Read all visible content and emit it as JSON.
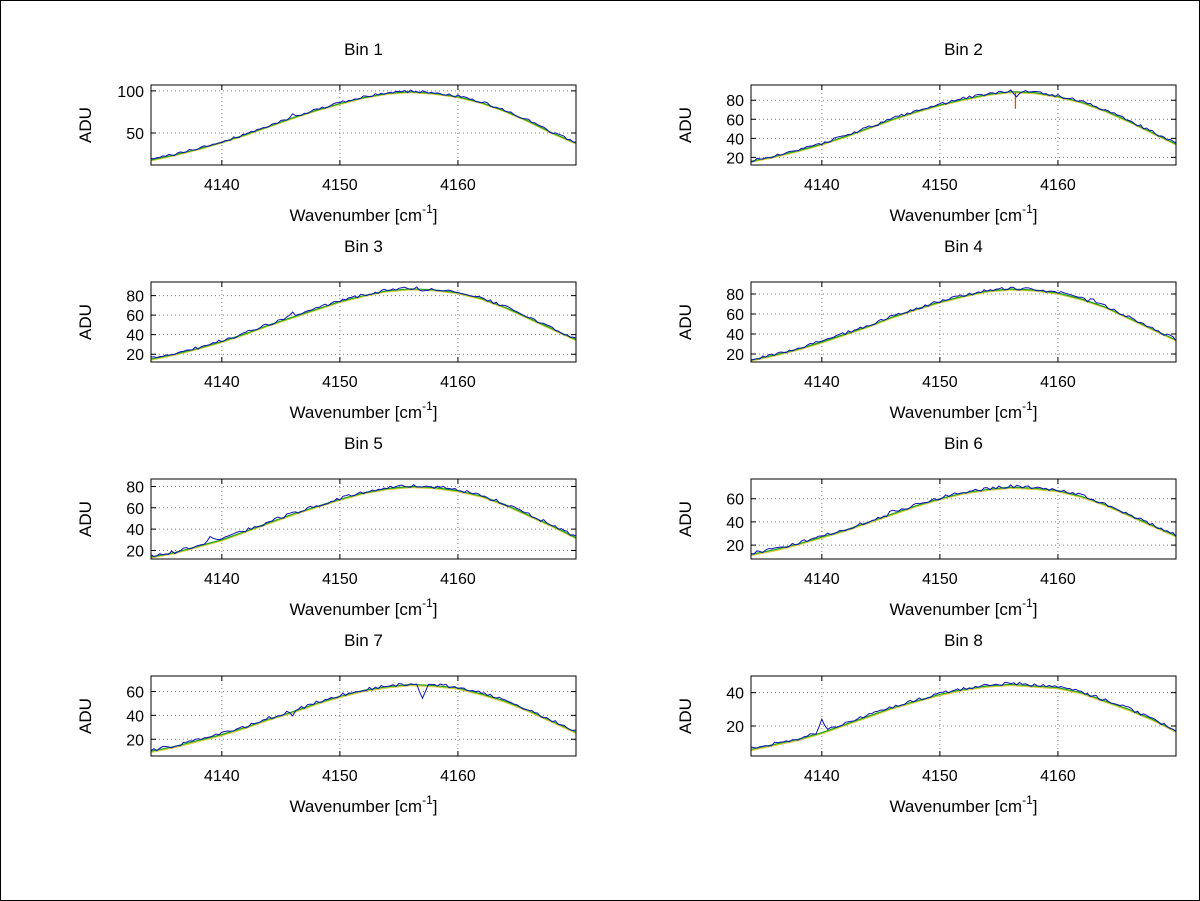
{
  "figure": {
    "background": "#ffffff",
    "border_color": "#000000",
    "grid_color": "#808080",
    "axis_color": "#000000"
  },
  "chart_data": [
    {
      "type": "line",
      "title": "Bin 1",
      "xlabel": {
        "base": "Wavenumber [cm",
        "sup": "-1",
        "end": "]"
      },
      "ylabel": "ADU",
      "xlim": [
        4134,
        4170
      ],
      "ylim": [
        12,
        107
      ],
      "xticks": [
        4140,
        4150,
        4160
      ],
      "yticks": [
        50,
        100
      ],
      "grid": true,
      "x_start": 4134,
      "x_step": 2,
      "values": [
        18,
        24,
        31,
        39,
        48,
        58,
        68,
        77,
        85,
        92,
        97,
        99,
        97,
        93,
        86,
        76,
        64,
        50,
        38
      ],
      "series": [
        {
          "name": "fit-yellow",
          "color": "#d4cf3a",
          "offset": -1.0,
          "noise": 0,
          "width": 1.2
        },
        {
          "name": "fit-green",
          "color": "#1fa01f",
          "offset": 0,
          "noise": 0,
          "width": 1.2
        },
        {
          "name": "measured",
          "color": "#1212b8",
          "offset": 0.7,
          "noise": 1.6,
          "width": 1.0
        }
      ],
      "spikes": [
        {
          "x": 4146,
          "dy": 5
        }
      ]
    },
    {
      "type": "line",
      "title": "Bin 2",
      "xlabel": {
        "base": "Wavenumber [cm",
        "sup": "-1",
        "end": "]"
      },
      "ylabel": "ADU",
      "xlim": [
        4134,
        4170
      ],
      "ylim": [
        12,
        96
      ],
      "xticks": [
        4140,
        4150,
        4160
      ],
      "yticks": [
        20,
        40,
        60,
        80
      ],
      "grid": true,
      "x_start": 4134,
      "x_step": 2,
      "values": [
        16,
        21,
        27,
        34,
        42,
        51,
        60,
        68,
        75,
        81,
        86,
        89,
        88,
        84,
        78,
        69,
        58,
        46,
        34
      ],
      "series": [
        {
          "name": "fit-yellow",
          "color": "#d4cf3a",
          "offset": -1.0,
          "noise": 0,
          "width": 1.2
        },
        {
          "name": "fit-green",
          "color": "#1fa01f",
          "offset": 0,
          "noise": 0,
          "width": 1.2
        },
        {
          "name": "measured",
          "color": "#1212b8",
          "offset": 0.7,
          "noise": 1.6,
          "width": 1.0
        }
      ],
      "spikes": [
        {
          "x": 4156.4,
          "dy": -5
        }
      ],
      "anomaly": {
        "x": 4156.4,
        "y1": 88,
        "y2": 71,
        "color": "#cc5500"
      }
    },
    {
      "type": "line",
      "title": "Bin 3",
      "xlabel": {
        "base": "Wavenumber [cm",
        "sup": "-1",
        "end": "]"
      },
      "ylabel": "ADU",
      "xlim": [
        4134,
        4170
      ],
      "ylim": [
        12,
        94
      ],
      "xticks": [
        4140,
        4150,
        4160
      ],
      "yticks": [
        20,
        40,
        60,
        80
      ],
      "grid": true,
      "x_start": 4134,
      "x_step": 2,
      "values": [
        15,
        20,
        26,
        33,
        41,
        50,
        58,
        66,
        74,
        80,
        85,
        87,
        86,
        83,
        77,
        68,
        57,
        46,
        35
      ],
      "series": [
        {
          "name": "fit-yellow",
          "color": "#d4cf3a",
          "offset": -1.0,
          "noise": 0,
          "width": 1.2
        },
        {
          "name": "fit-green",
          "color": "#1fa01f",
          "offset": 0,
          "noise": 0,
          "width": 1.2
        },
        {
          "name": "measured",
          "color": "#1212b8",
          "offset": 0.7,
          "noise": 1.6,
          "width": 1.0
        }
      ],
      "spikes": [
        {
          "x": 4157,
          "dy": -4
        },
        {
          "x": 4146,
          "dy": 3
        }
      ]
    },
    {
      "type": "line",
      "title": "Bin 4",
      "xlabel": {
        "base": "Wavenumber [cm",
        "sup": "-1",
        "end": "]"
      },
      "ylabel": "ADU",
      "xlim": [
        4134,
        4170
      ],
      "ylim": [
        12,
        92
      ],
      "xticks": [
        4140,
        4150,
        4160
      ],
      "yticks": [
        20,
        40,
        60,
        80
      ],
      "grid": true,
      "x_start": 4134,
      "x_step": 2,
      "values": [
        14,
        19,
        25,
        32,
        40,
        48,
        57,
        65,
        72,
        78,
        83,
        85,
        84,
        81,
        75,
        67,
        56,
        45,
        34
      ],
      "series": [
        {
          "name": "fit-yellow",
          "color": "#d4cf3a",
          "offset": -1.0,
          "noise": 0,
          "width": 1.2
        },
        {
          "name": "fit-green",
          "color": "#1fa01f",
          "offset": 0,
          "noise": 0,
          "width": 1.2
        },
        {
          "name": "measured",
          "color": "#1212b8",
          "offset": 0.7,
          "noise": 1.6,
          "width": 1.0
        }
      ],
      "spikes": [
        {
          "x": 4163,
          "dy": 3
        }
      ]
    },
    {
      "type": "line",
      "title": "Bin 5",
      "xlabel": {
        "base": "Wavenumber [cm",
        "sup": "-1",
        "end": "]"
      },
      "ylabel": "ADU",
      "xlim": [
        4134,
        4170
      ],
      "ylim": [
        12,
        87
      ],
      "xticks": [
        4140,
        4150,
        4160
      ],
      "yticks": [
        20,
        40,
        60,
        80
      ],
      "grid": true,
      "x_start": 4134,
      "x_step": 2,
      "values": [
        14,
        18,
        24,
        30,
        38,
        46,
        54,
        61,
        68,
        74,
        78,
        80,
        79,
        76,
        71,
        63,
        53,
        43,
        32
      ],
      "series": [
        {
          "name": "fit-yellow",
          "color": "#d4cf3a",
          "offset": -1.0,
          "noise": 0,
          "width": 1.2
        },
        {
          "name": "fit-green",
          "color": "#1fa01f",
          "offset": 0,
          "noise": 0,
          "width": 1.2
        },
        {
          "name": "measured",
          "color": "#1212b8",
          "offset": 0.7,
          "noise": 1.6,
          "width": 1.0
        }
      ],
      "spikes": [
        {
          "x": 4139,
          "dy": 4
        }
      ]
    },
    {
      "type": "line",
      "title": "Bin 6",
      "xlabel": {
        "base": "Wavenumber [cm",
        "sup": "-1",
        "end": "]"
      },
      "ylabel": "ADU",
      "xlim": [
        4134,
        4170
      ],
      "ylim": [
        8,
        77
      ],
      "xticks": [
        4140,
        4150,
        4160
      ],
      "yticks": [
        20,
        40,
        60
      ],
      "grid": true,
      "x_start": 4134,
      "x_step": 2,
      "values": [
        12,
        16,
        21,
        27,
        33,
        40,
        47,
        54,
        60,
        65,
        68,
        70,
        69,
        67,
        62,
        55,
        46,
        37,
        28
      ],
      "series": [
        {
          "name": "fit-yellow",
          "color": "#d4cf3a",
          "offset": -1.0,
          "noise": 0,
          "width": 1.2
        },
        {
          "name": "fit-green",
          "color": "#1fa01f",
          "offset": 0,
          "noise": 0,
          "width": 1.2
        },
        {
          "name": "measured",
          "color": "#1212b8",
          "offset": 0.7,
          "noise": 1.4,
          "width": 1.0
        }
      ],
      "spikes": [
        {
          "x": 4146,
          "dy": 3
        }
      ]
    },
    {
      "type": "line",
      "title": "Bin 7",
      "xlabel": {
        "base": "Wavenumber [cm",
        "sup": "-1",
        "end": "]"
      },
      "ylabel": "ADU",
      "xlim": [
        4134,
        4170
      ],
      "ylim": [
        6,
        73
      ],
      "xticks": [
        4140,
        4150,
        4160
      ],
      "yticks": [
        20,
        40,
        60
      ],
      "grid": true,
      "x_start": 4134,
      "x_step": 2,
      "values": [
        10,
        14,
        19,
        24,
        30,
        37,
        43,
        50,
        56,
        61,
        64,
        66,
        65,
        63,
        58,
        52,
        44,
        35,
        26
      ],
      "series": [
        {
          "name": "fit-yellow",
          "color": "#d4cf3a",
          "offset": -1.0,
          "noise": 0,
          "width": 1.2
        },
        {
          "name": "fit-green",
          "color": "#1fa01f",
          "offset": 0,
          "noise": 0,
          "width": 1.2
        },
        {
          "name": "measured",
          "color": "#1212b8",
          "offset": 0.7,
          "noise": 1.4,
          "width": 1.0
        }
      ],
      "spikes": [
        {
          "x": 4157,
          "dy": -12
        },
        {
          "x": 4146,
          "dy": -4
        }
      ]
    },
    {
      "type": "line",
      "title": "Bin 8",
      "xlabel": {
        "base": "Wavenumber [cm",
        "sup": "-1",
        "end": "]"
      },
      "ylabel": "ADU",
      "xlim": [
        4134,
        4170
      ],
      "ylim": [
        2,
        50
      ],
      "xticks": [
        4140,
        4150,
        4160
      ],
      "yticks": [
        20,
        40
      ],
      "grid": true,
      "x_start": 4134,
      "x_step": 2,
      "values": [
        6,
        9,
        12,
        16,
        21,
        26,
        31,
        35,
        39,
        42,
        44,
        45,
        44,
        43,
        40,
        35,
        30,
        24,
        17
      ],
      "series": [
        {
          "name": "fit-yellow",
          "color": "#d4cf3a",
          "offset": -0.7,
          "noise": 0,
          "width": 1.2
        },
        {
          "name": "fit-green",
          "color": "#1fa01f",
          "offset": 0,
          "noise": 0,
          "width": 1.2
        },
        {
          "name": "measured",
          "color": "#1212b8",
          "offset": 0.5,
          "noise": 1.0,
          "width": 1.0
        }
      ],
      "spikes": [
        {
          "x": 4140,
          "dy": 7
        }
      ]
    }
  ]
}
